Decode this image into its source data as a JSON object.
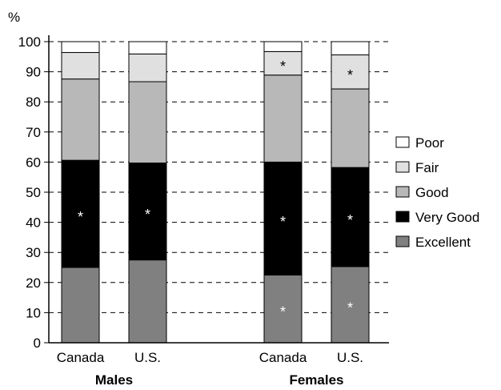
{
  "chart_data": {
    "type": "bar",
    "stacked": true,
    "y_unit_label": "%",
    "ylim": [
      0,
      100
    ],
    "y_ticks": [
      "0",
      "10",
      "20",
      "30",
      "40",
      "50",
      "60",
      "70",
      "80",
      "90",
      "100"
    ],
    "grid": "horizontal dashed",
    "legend_position": "right",
    "groups": [
      {
        "label": "Males",
        "bars": [
          "Canada",
          "U.S."
        ]
      },
      {
        "label": "Females",
        "bars": [
          "Canada",
          "U.S."
        ]
      }
    ],
    "categories": [
      "Canada",
      "U.S.",
      "Canada",
      "U.S."
    ],
    "series": [
      {
        "name": "Excellent",
        "color": "#808080",
        "values": [
          25.0,
          27.5,
          22.5,
          25.3
        ]
      },
      {
        "name": "Very Good",
        "color": "#000000",
        "values": [
          35.6,
          32.2,
          37.5,
          32.9
        ]
      },
      {
        "name": "Good",
        "color": "#b8b8b8",
        "values": [
          27.0,
          27.0,
          28.9,
          26.1
        ]
      },
      {
        "name": "Fair",
        "color": "#e0e0e0",
        "values": [
          8.8,
          9.2,
          7.8,
          11.3
        ]
      },
      {
        "name": "Poor",
        "color": "#ffffff",
        "values": [
          3.6,
          4.1,
          3.3,
          4.4
        ]
      }
    ],
    "legend_order": [
      "Poor",
      "Fair",
      "Good",
      "Very Good",
      "Excellent"
    ],
    "annotations": [
      {
        "bar": 0,
        "series": "Very Good",
        "text": "*"
      },
      {
        "bar": 1,
        "series": "Very Good",
        "text": "*"
      },
      {
        "bar": 2,
        "series": "Excellent",
        "text": "*"
      },
      {
        "bar": 2,
        "series": "Very Good",
        "text": "*"
      },
      {
        "bar": 2,
        "series": "Fair",
        "text": "*"
      },
      {
        "bar": 3,
        "series": "Excellent",
        "text": "*"
      },
      {
        "bar": 3,
        "series": "Very Good",
        "text": "*"
      },
      {
        "bar": 3,
        "series": "Fair",
        "text": "*"
      }
    ]
  }
}
